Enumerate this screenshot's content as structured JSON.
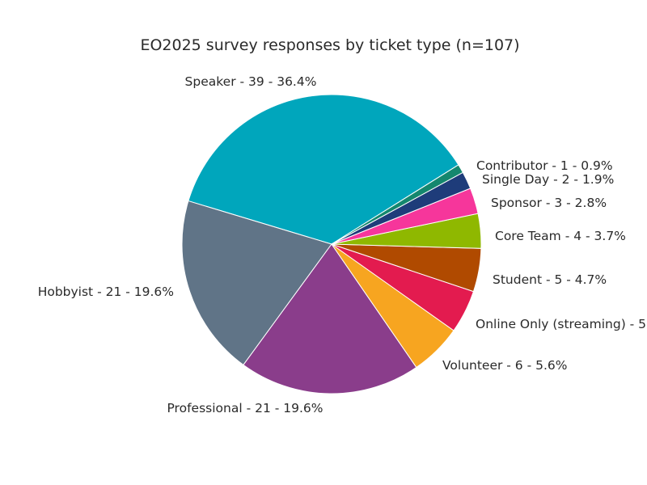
{
  "chart_data": {
    "type": "pie",
    "title": "EO2025 survey responses by ticket type (n=107)",
    "total": 107,
    "slices": [
      {
        "name": "Speaker",
        "value": 39,
        "percent": "36.4%",
        "color": "#00a6bc",
        "label": "Speaker - 39 - 36.4%"
      },
      {
        "name": "Hobbyist",
        "value": 21,
        "percent": "19.6%",
        "color": "#607487",
        "label": "Hobbyist - 21 - 19.6%"
      },
      {
        "name": "Professional",
        "value": 21,
        "percent": "19.6%",
        "color": "#8a3d8b",
        "label": "Professional - 21 - 19.6%"
      },
      {
        "name": "Volunteer",
        "value": 6,
        "percent": "5.6%",
        "color": "#f7a520",
        "label": "Volunteer - 6 - 5.6%"
      },
      {
        "name": "Online Only (streaming)",
        "value": 5,
        "percent": "4.7%",
        "color": "#e31b4f",
        "label": "Online Only (streaming) - 5"
      },
      {
        "name": "Student",
        "value": 5,
        "percent": "4.7%",
        "color": "#b04a00",
        "label": "Student - 5 - 4.7%"
      },
      {
        "name": "Core Team",
        "value": 4,
        "percent": "3.7%",
        "color": "#8fb800",
        "label": "Core Team - 4 - 3.7%"
      },
      {
        "name": "Sponsor",
        "value": 3,
        "percent": "2.8%",
        "color": "#f6369b",
        "label": "Sponsor - 3 - 2.8%"
      },
      {
        "name": "Single Day",
        "value": 2,
        "percent": "1.9%",
        "color": "#1e3c7a",
        "label": "Single Day - 2 - 1.9%"
      },
      {
        "name": "Contributor",
        "value": 1,
        "percent": "0.9%",
        "color": "#14876e",
        "label": "Contributor - 1 - 0.9%"
      }
    ]
  }
}
